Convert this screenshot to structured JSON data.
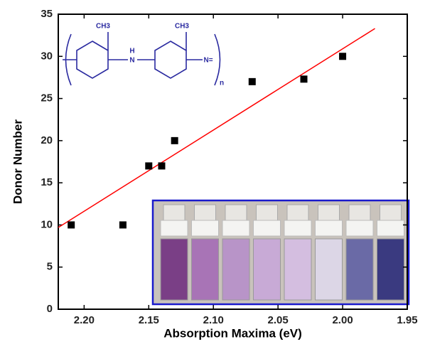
{
  "chart_data": {
    "type": "scatter",
    "xlabel": "Absorption Maxima (eV)",
    "ylabel": "Donor Number",
    "series": [
      {
        "color": "#000000",
        "x": [
          2.21,
          2.17,
          2.15,
          2.14,
          2.13,
          2.07,
          2.03,
          2.0
        ],
        "values": [
          10,
          10,
          17,
          17,
          20,
          27,
          27.3,
          30
        ]
      }
    ],
    "fit": {
      "color": "#ff0000",
      "x": [
        2.22,
        1.975
      ],
      "values": [
        9.7,
        33.3
      ]
    },
    "xlim": [
      2.22,
      1.95
    ],
    "xticks": [
      {
        "value": 2.2,
        "label": "2.20"
      },
      2.15,
      {
        "value": 2.1,
        "label": "2.10"
      },
      2.05,
      {
        "value": 2,
        "label": "2.00"
      },
      1.95
    ],
    "ylim": [
      0,
      35
    ],
    "yticks": [
      0,
      5,
      10,
      15,
      20,
      25,
      30,
      35
    ],
    "annotations": [
      "CH3",
      "CH3",
      "H",
      "N",
      "N=",
      "n"
    ]
  }
}
